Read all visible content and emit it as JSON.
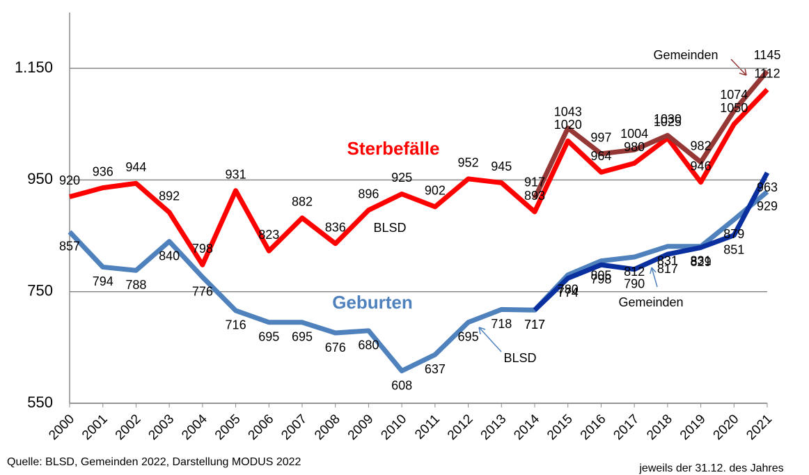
{
  "chart_data": {
    "type": "line",
    "categories": [
      "2000",
      "2001",
      "2002",
      "2003",
      "2004",
      "2005",
      "2006",
      "2007",
      "2008",
      "2009",
      "2010",
      "2011",
      "2012",
      "2013",
      "2014",
      "2015",
      "2016",
      "2017",
      "2018",
      "2019",
      "2020",
      "2021"
    ],
    "series": [
      {
        "name": "Sterbefälle BLSD",
        "color": "#ff0000",
        "values": [
          920,
          936,
          944,
          892,
          798,
          931,
          823,
          882,
          836,
          896,
          925,
          902,
          952,
          945,
          893,
          1020,
          964,
          980,
          1025,
          946,
          1050,
          1112
        ]
      },
      {
        "name": "Sterbefälle Gemeinden",
        "color": "#953735",
        "values": [
          null,
          null,
          null,
          null,
          null,
          null,
          null,
          null,
          null,
          null,
          null,
          null,
          null,
          null,
          917,
          1043,
          997,
          1004,
          1030,
          982,
          1074,
          1145
        ]
      },
      {
        "name": "Geburten BLSD",
        "color": "#4f81bd",
        "values": [
          857,
          794,
          788,
          840,
          776,
          716,
          695,
          695,
          676,
          680,
          608,
          637,
          695,
          718,
          717,
          780,
          805,
          812,
          831,
          831,
          879,
          929
        ]
      },
      {
        "name": "Geburten Gemeinden",
        "color": "#0a2f9e",
        "values": [
          null,
          null,
          null,
          null,
          null,
          null,
          null,
          null,
          null,
          null,
          null,
          null,
          null,
          null,
          717,
          774,
          798,
          790,
          817,
          829,
          851,
          963
        ]
      }
    ],
    "ylim": [
      550,
      1250
    ],
    "yticks": [
      550,
      750,
      950,
      {
        "value": 1150,
        "label": "1.150"
      }
    ],
    "grid": true,
    "annotations": [
      "Sterbefälle",
      "Geburten",
      "BLSD",
      "BLSD",
      "Gemeinden",
      "Gemeinden"
    ],
    "source": "Quelle: BLSD, Gemeinden 2022, Darstellung MODUS 2022",
    "note": "jeweils der 31.12. des Jahres"
  }
}
